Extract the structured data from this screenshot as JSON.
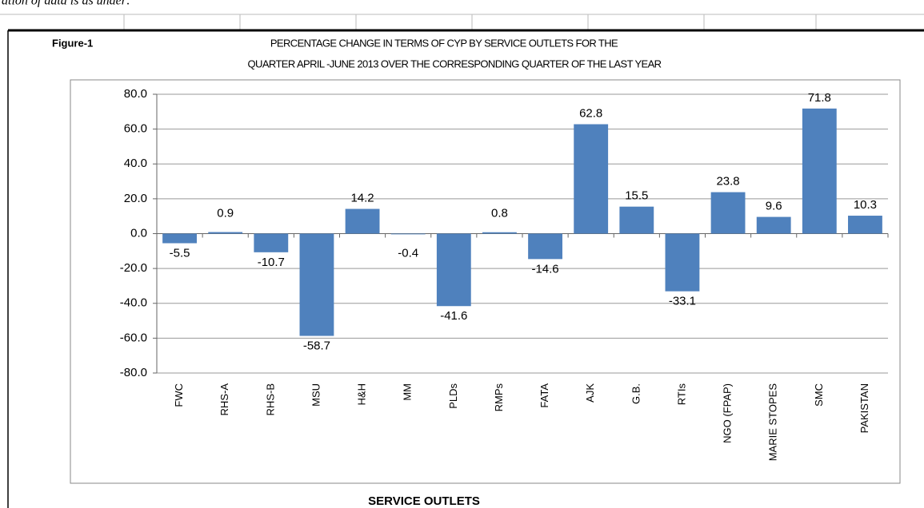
{
  "intro": "ation of data is as under:",
  "chart_data": {
    "type": "bar",
    "figure_label": "Figure-1",
    "title": "PERCENTAGE CHANGE IN TERMS OF CYP BY SERVICE OUTLETS FOR THE",
    "subtitle": "QUARTER APRIL -JUNE  2013 OVER THE CORRESPONDING QUARTER OF THE LAST YEAR",
    "x_label": "SERVICE OUTLETS",
    "categories": [
      "FWC",
      "RHS-A",
      "RHS-B",
      "MSU",
      "H&H",
      "MM",
      "PLDs",
      "RMPs",
      "FATA",
      "AJK",
      "G.B.",
      "RTIs",
      "NGO (FPAP)",
      "MARIE STOPES",
      "SMC",
      "PAKISTAN"
    ],
    "values": [
      -5.5,
      0.9,
      -10.7,
      -58.7,
      14.2,
      -0.4,
      -41.6,
      0.8,
      -14.6,
      62.8,
      15.5,
      -33.1,
      23.8,
      9.6,
      71.8,
      10.3
    ],
    "color": "#4f81bd",
    "ylim": [
      -80,
      80
    ],
    "yticks": [
      {
        "value": -80,
        "label": "-80.0"
      },
      {
        "value": -60,
        "label": "-60.0"
      },
      {
        "value": -40,
        "label": "-40.0"
      },
      {
        "value": -20,
        "label": "-20.0"
      },
      {
        "value": 0,
        "label": "0.0"
      },
      {
        "value": 20,
        "label": "20.0"
      },
      {
        "value": 40,
        "label": "40.0"
      },
      {
        "value": 60,
        "label": "60.0"
      },
      {
        "value": 80,
        "label": "80.0"
      }
    ],
    "grid": true
  }
}
